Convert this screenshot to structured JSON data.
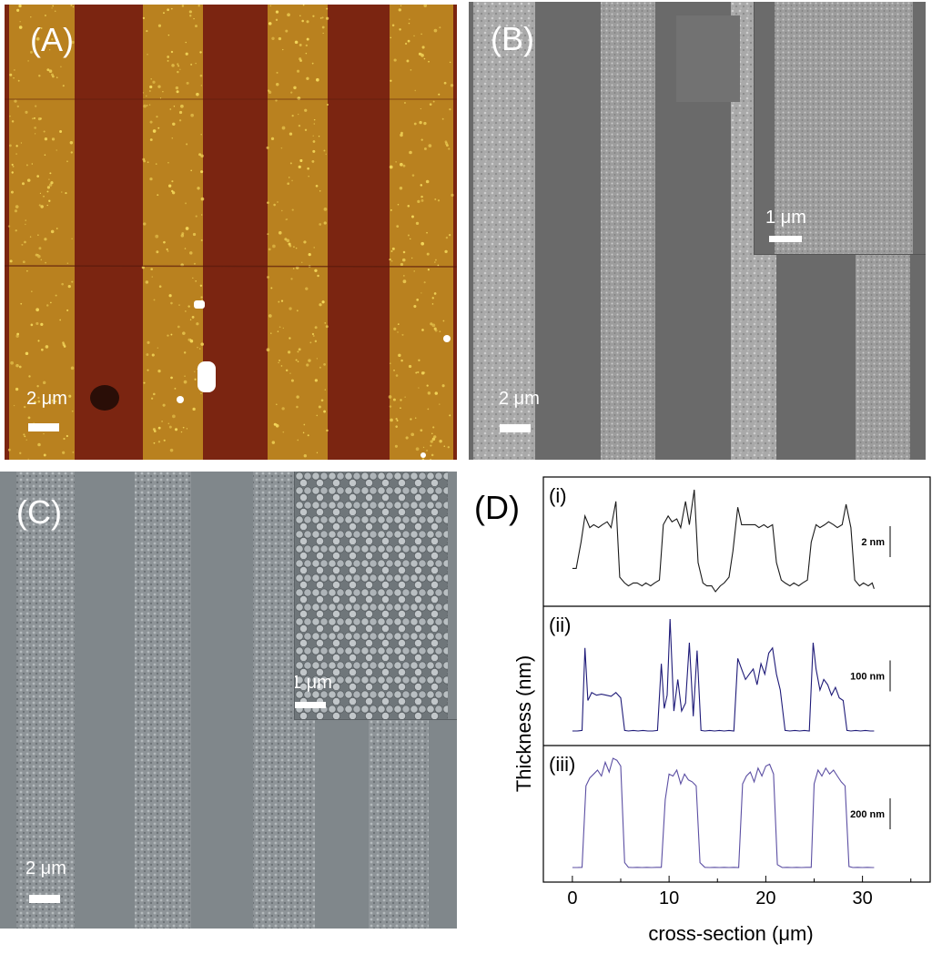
{
  "figure": {
    "panel_a": {
      "label": "(A)",
      "scale_bar": "2 μm",
      "colors": {
        "stripe_light": "#b9811f",
        "stripe_dark": "#7b2511",
        "speck": "#f3d75a"
      }
    },
    "panel_b": {
      "label": "(B)",
      "scale_bar": "2 μm",
      "inset_scale_bar": "1 μm",
      "colors": {
        "stripe_light": "#a6a6a6",
        "stripe_dark": "#6a6a6a"
      }
    },
    "panel_c": {
      "label": "(C)",
      "scale_bar": "2 μm",
      "inset_scale_bar": "1 μm",
      "colors": {
        "stripe_light": "#8d9397",
        "stripe_dark": "#7f868a"
      }
    },
    "panel_d": {
      "label": "(D)"
    }
  },
  "chart_data": {
    "type": "line",
    "xlabel": "cross-section (μm)",
    "ylabel": "Thickness (nm)",
    "xlim": [
      -3,
      37
    ],
    "xticks": [
      "0",
      "10",
      "20",
      "30"
    ],
    "subplots": [
      {
        "label": "(i)",
        "scale_bar": "2 nm",
        "color": "#1a1a1a",
        "x": [
          0.0,
          0.4,
          0.9,
          1.3,
          1.8,
          2.2,
          2.7,
          3.1,
          3.6,
          4.0,
          4.5,
          4.9,
          5.4,
          5.8,
          6.3,
          6.7,
          7.2,
          7.6,
          8.1,
          8.5,
          9.0,
          9.4,
          9.9,
          10.3,
          10.8,
          11.2,
          11.7,
          12.1,
          12.6,
          13.0,
          13.5,
          13.9,
          14.4,
          14.8,
          15.3,
          15.7,
          16.2,
          16.6,
          17.1,
          17.5,
          18.0,
          18.4,
          18.9,
          19.3,
          19.8,
          20.2,
          20.7,
          21.1,
          21.6,
          22.0,
          22.5,
          22.9,
          23.4,
          23.8,
          24.3,
          24.7,
          25.2,
          25.6,
          26.1,
          26.5,
          27.0,
          27.4,
          27.9,
          28.3,
          28.8,
          29.2,
          29.7,
          30.1,
          30.6,
          31.0,
          31.2
        ],
        "y": [
          0.6,
          0.6,
          1.5,
          2.4,
          2.0,
          2.1,
          2.0,
          2.1,
          2.2,
          2.0,
          2.9,
          0.3,
          0.1,
          0.0,
          0.1,
          0.1,
          0.0,
          0.1,
          0.0,
          0.1,
          0.2,
          2.1,
          2.4,
          2.2,
          2.3,
          2.0,
          2.9,
          2.1,
          3.3,
          0.8,
          0.1,
          0.0,
          0.0,
          -0.2,
          0.0,
          0.1,
          0.3,
          1.2,
          2.7,
          2.1,
          2.1,
          2.1,
          2.1,
          2.0,
          2.1,
          2.0,
          2.1,
          0.8,
          0.2,
          0.1,
          0.0,
          0.1,
          0.0,
          0.1,
          0.2,
          1.5,
          2.1,
          2.0,
          2.1,
          2.2,
          2.1,
          2.0,
          2.1,
          2.8,
          2.0,
          0.2,
          0.0,
          0.1,
          0.0,
          0.1,
          -0.1
        ]
      },
      {
        "label": "(ii)",
        "scale_bar": "100 nm",
        "color": "#1e1a78",
        "x": [
          0.0,
          0.5,
          1.0,
          1.3,
          1.6,
          2.0,
          2.5,
          3.0,
          3.5,
          4.0,
          4.5,
          5.0,
          5.4,
          5.8,
          6.3,
          6.8,
          7.3,
          7.8,
          8.3,
          8.8,
          9.2,
          9.5,
          9.8,
          10.1,
          10.5,
          10.9,
          11.3,
          11.7,
          12.1,
          12.5,
          12.9,
          13.3,
          13.7,
          14.2,
          14.7,
          15.2,
          15.7,
          16.2,
          16.7,
          17.1,
          17.5,
          17.9,
          18.3,
          18.7,
          19.1,
          19.5,
          19.9,
          20.3,
          20.7,
          21.1,
          21.5,
          22.0,
          22.5,
          23.0,
          23.5,
          24.0,
          24.5,
          24.9,
          25.2,
          25.6,
          26.0,
          26.4,
          26.8,
          27.2,
          27.6,
          28.0,
          28.4,
          28.8,
          29.3,
          29.8,
          30.3,
          30.8,
          31.2
        ],
        "y": [
          2,
          2,
          3,
          160,
          60,
          75,
          70,
          72,
          70,
          68,
          75,
          65,
          3,
          2,
          3,
          2,
          3,
          2,
          2,
          3,
          130,
          45,
          70,
          215,
          40,
          100,
          40,
          55,
          170,
          30,
          155,
          3,
          2,
          3,
          2,
          3,
          2,
          3,
          2,
          140,
          120,
          100,
          110,
          120,
          90,
          130,
          110,
          150,
          160,
          110,
          80,
          3,
          2,
          3,
          2,
          3,
          2,
          170,
          120,
          80,
          100,
          90,
          70,
          85,
          65,
          60,
          3,
          2,
          3,
          2,
          3,
          2,
          2
        ]
      },
      {
        "label": "(iii)",
        "scale_bar": "200 nm",
        "color": "#5c4fa3",
        "x": [
          0.0,
          0.5,
          1.0,
          1.4,
          1.8,
          2.2,
          2.6,
          3.0,
          3.4,
          3.8,
          4.2,
          4.6,
          5.0,
          5.4,
          5.8,
          6.2,
          6.7,
          7.2,
          7.7,
          8.2,
          8.7,
          9.2,
          9.6,
          10.0,
          10.4,
          10.8,
          11.2,
          11.6,
          12.0,
          12.4,
          12.8,
          13.2,
          13.7,
          14.2,
          14.7,
          15.2,
          15.7,
          16.2,
          16.7,
          17.2,
          17.6,
          18.0,
          18.4,
          18.8,
          19.2,
          19.6,
          20.0,
          20.4,
          20.8,
          21.2,
          21.7,
          22.2,
          22.7,
          23.2,
          23.7,
          24.2,
          24.7,
          25.0,
          25.4,
          25.8,
          26.2,
          26.6,
          27.0,
          27.4,
          27.8,
          28.2,
          28.6,
          29.0,
          29.5,
          30.0,
          30.5,
          31.0,
          31.2
        ],
        "y": [
          5,
          5,
          6,
          420,
          460,
          480,
          500,
          470,
          540,
          490,
          560,
          550,
          520,
          30,
          6,
          5,
          6,
          5,
          6,
          5,
          6,
          6,
          350,
          480,
          470,
          500,
          430,
          480,
          450,
          440,
          420,
          30,
          6,
          5,
          6,
          5,
          6,
          5,
          6,
          5,
          430,
          470,
          490,
          440,
          510,
          470,
          520,
          530,
          480,
          20,
          5,
          6,
          5,
          6,
          5,
          6,
          6,
          430,
          500,
          470,
          510,
          480,
          500,
          470,
          440,
          420,
          10,
          5,
          6,
          5,
          6,
          5,
          5
        ]
      }
    ]
  }
}
